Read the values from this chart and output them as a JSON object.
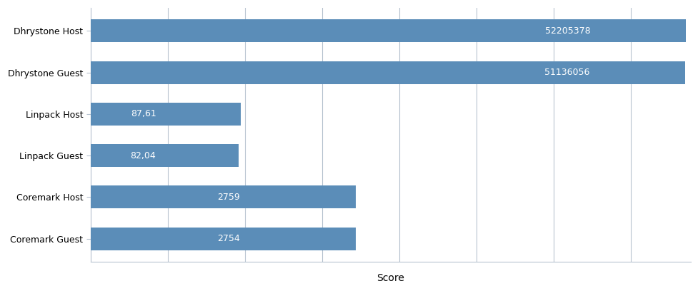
{
  "categories": [
    "Coremark Guest",
    "Coremark Host",
    "Linpack Guest",
    "Linpack Host",
    "Dhrystone Guest",
    "Dhrystone Host"
  ],
  "values": [
    2754,
    2759,
    82.04,
    87.61,
    51136056,
    52205378
  ],
  "labels": [
    "2754",
    "2759",
    "82,04",
    "87,61",
    "51136056",
    "52205378"
  ],
  "bar_color": "#5B8DB8",
  "text_color": "white",
  "xlabel": "Score",
  "xlabel_fontsize": 10,
  "label_fontsize": 9,
  "ytick_fontsize": 9,
  "background_color": "#ffffff",
  "bar_height": 0.55,
  "grid_color": "#b8c4d0",
  "spine_color": "#b8c4d0",
  "xlim_min": 1,
  "xlim_max": 60000000
}
